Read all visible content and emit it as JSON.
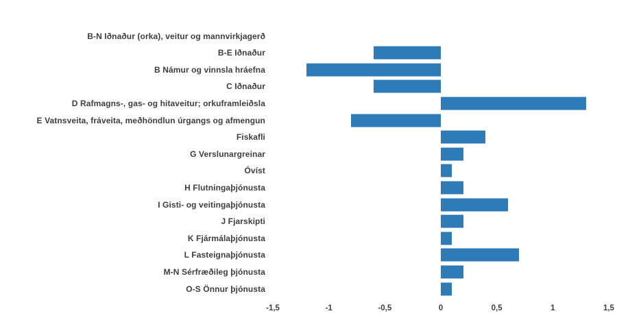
{
  "chart_data": {
    "type": "bar",
    "orientation": "horizontal",
    "title": "",
    "xlabel": "",
    "ylabel": "",
    "legend": false,
    "grid": false,
    "xlim": [
      -1.5,
      1.5
    ],
    "x_ticks": [
      -1.5,
      -1,
      -0.5,
      0,
      0.5,
      1,
      1.5
    ],
    "x_tick_labels": [
      "-1,5",
      "-1",
      "-0,5",
      "0",
      "0,5",
      "1",
      "1,5"
    ],
    "decimal_separator": "comma",
    "bar_color": "#2e7bb8",
    "label_color": "#3d3d3d",
    "categories": [
      "B-N Iðnaður (orka), veitur og mannvirkjagerð",
      "B-E Iðnaður",
      "B Námur og vinnsla hráefna",
      "C Iðnaður",
      "D Rafmagns-, gas- og hitaveitur; orkuframleiðsla",
      "E Vatnsveita, fráveita, meðhöndlun úrgangs og afmengun",
      "Fiskafli",
      "G Verslunargreinar",
      "Óvíst",
      "H Flutningaþjónusta",
      "I Gisti- og veitingaþjónusta",
      "J Fjarskipti",
      "K Fjármálaþjónusta",
      "L Fasteignaþjónusta",
      "M-N Sérfræðileg þjónusta",
      "O-S Önnur þjónusta"
    ],
    "values": [
      0.0,
      -0.6,
      -1.2,
      -0.6,
      1.3,
      -0.8,
      0.4,
      0.2,
      0.1,
      0.2,
      0.6,
      0.2,
      0.1,
      0.7,
      0.2,
      0.1
    ]
  },
  "layout_hints": {
    "note": "values are change figures; first category shows no visible bar (value 0)"
  }
}
